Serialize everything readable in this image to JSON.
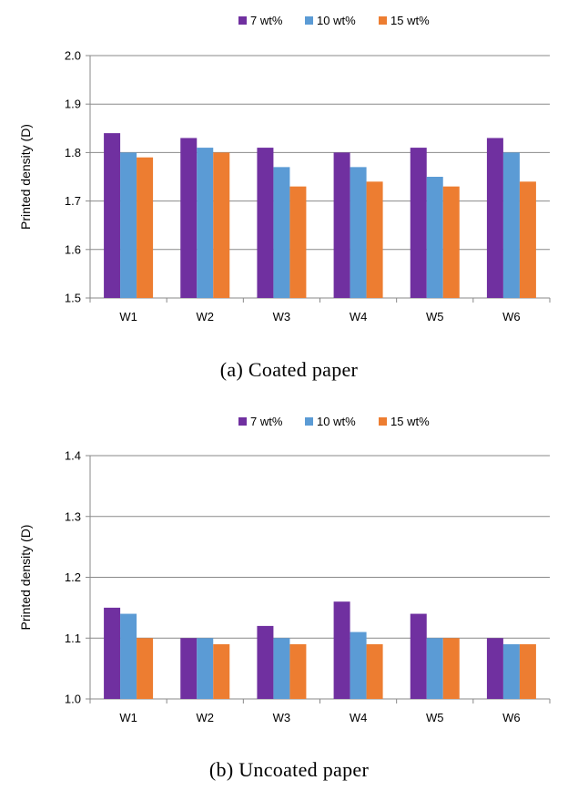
{
  "colors": {
    "series_1": "#7030a0",
    "series_2": "#5b9bd5",
    "series_3": "#ed7d31",
    "gridline": "#898989",
    "axis": "#898989"
  },
  "chart_data": [
    {
      "type": "bar",
      "caption": "(a) Coated paper",
      "ylabel": "Printed density (D)",
      "categories": [
        "W1",
        "W2",
        "W3",
        "W4",
        "W5",
        "W6"
      ],
      "ylim": [
        1.5,
        2.0
      ],
      "yticks": [
        "1.5",
        "1.6",
        "1.7",
        "1.8",
        "1.9",
        "2.0"
      ],
      "grid": true,
      "legend_position": "top",
      "series": [
        {
          "name": "7 wt%",
          "values": [
            1.84,
            1.83,
            1.81,
            1.8,
            1.81,
            1.83
          ]
        },
        {
          "name": "10 wt%",
          "values": [
            1.8,
            1.81,
            1.77,
            1.77,
            1.75,
            1.8
          ]
        },
        {
          "name": "15 wt%",
          "values": [
            1.79,
            1.8,
            1.73,
            1.74,
            1.73,
            1.74
          ]
        }
      ]
    },
    {
      "type": "bar",
      "caption": "(b) Uncoated paper",
      "ylabel": "Printed density (D)",
      "categories": [
        "W1",
        "W2",
        "W3",
        "W4",
        "W5",
        "W6"
      ],
      "ylim": [
        1.0,
        1.4
      ],
      "yticks": [
        "1.0",
        "1.1",
        "1.2",
        "1.3",
        "1.4"
      ],
      "grid": true,
      "legend_position": "top",
      "series": [
        {
          "name": "7 wt%",
          "values": [
            1.15,
            1.1,
            1.12,
            1.16,
            1.14,
            1.1
          ]
        },
        {
          "name": "10 wt%",
          "values": [
            1.14,
            1.1,
            1.1,
            1.11,
            1.1,
            1.09
          ]
        },
        {
          "name": "15 wt%",
          "values": [
            1.1,
            1.09,
            1.09,
            1.09,
            1.1,
            1.09
          ]
        }
      ]
    }
  ]
}
